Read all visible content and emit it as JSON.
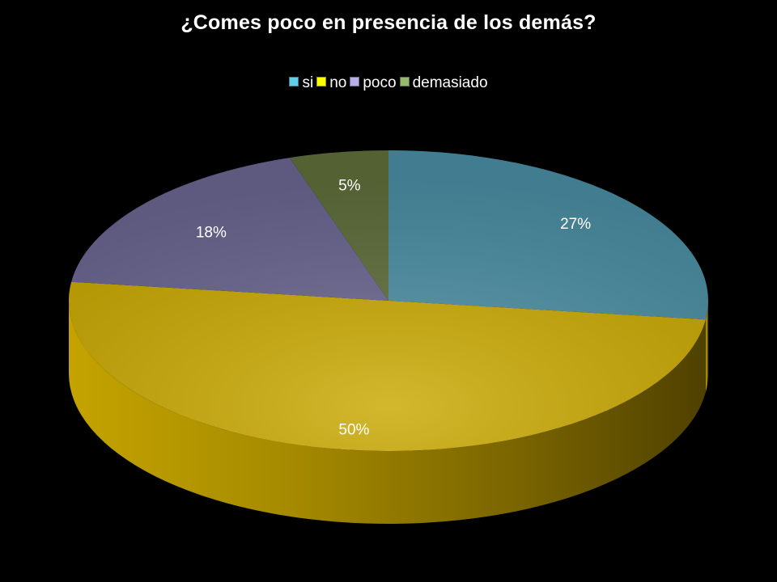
{
  "chart_data": {
    "type": "pie",
    "style": "3d",
    "title": "¿Comes poco en presencia de los demás?",
    "legend_position": "top",
    "categories": [
      "si",
      "no",
      "poco",
      "demasiado"
    ],
    "values": [
      27,
      50,
      18,
      5
    ],
    "labels": [
      "27%",
      "50%",
      "18%",
      "5%"
    ],
    "colors": [
      "#4a8ea3",
      "#c9a800",
      "#6a6590",
      "#5e6e3a"
    ],
    "legend_colors": [
      "#5fd0e8",
      "#ffff00",
      "#b6b0e6",
      "#98b871"
    ]
  }
}
